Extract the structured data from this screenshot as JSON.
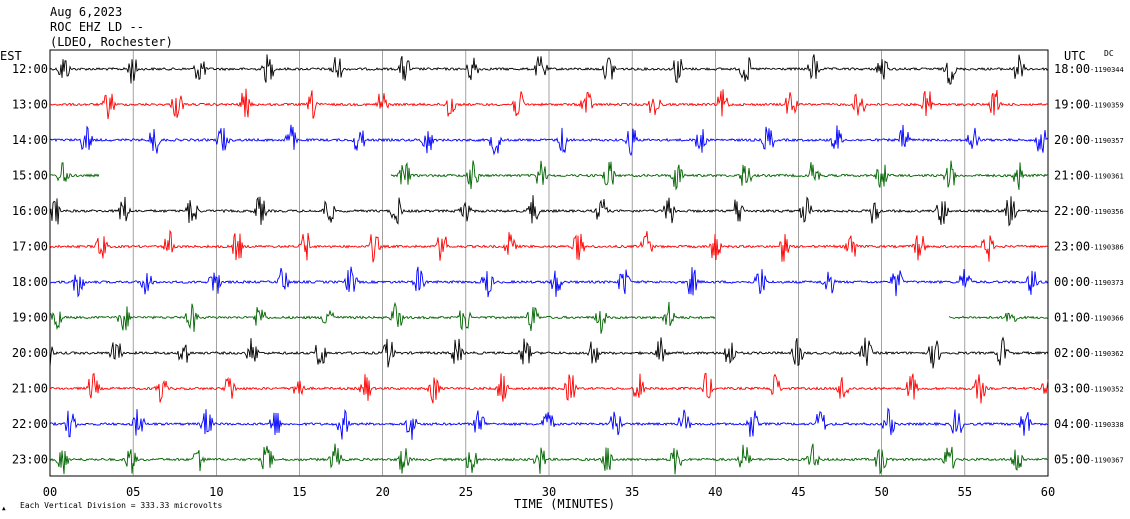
{
  "header": {
    "date": "Aug 6,2023",
    "station": "ROC EHZ LD --",
    "network": "(LDEO, Rochester)",
    "left_zone": "EST",
    "right_zone": "UTC",
    "dc_label": "DC"
  },
  "footer": {
    "xlabel": "TIME (MINUTES)",
    "scale_note": "Each Vertical Division =  333.33 microvolts"
  },
  "chart_data": {
    "type": "line",
    "title": "ROC EHZ LD --",
    "xlabel": "TIME (MINUTES)",
    "xlim": [
      0,
      60
    ],
    "x_ticks": [
      "00",
      "05",
      "10",
      "15",
      "20",
      "25",
      "30",
      "35",
      "40",
      "45",
      "50",
      "55",
      "60"
    ],
    "grid": true,
    "trace_colors": [
      "#000000",
      "#ff0000",
      "#0000ff",
      "#006400"
    ],
    "rows": [
      {
        "est": "12:00",
        "utc": "18:00",
        "dc": "-1190344",
        "color": "#000000"
      },
      {
        "est": "13:00",
        "utc": "19:00",
        "dc": "-1190359",
        "color": "#ff0000"
      },
      {
        "est": "14:00",
        "utc": "20:00",
        "dc": "-1190357",
        "color": "#0000ff"
      },
      {
        "est": "15:00",
        "utc": "21:00",
        "dc": "-1190361",
        "color": "#006400"
      },
      {
        "est": "16:00",
        "utc": "22:00",
        "dc": "-1190356",
        "color": "#000000"
      },
      {
        "est": "17:00",
        "utc": "23:00",
        "dc": "-1190386",
        "color": "#ff0000"
      },
      {
        "est": "18:00",
        "utc": "00:00",
        "dc": "-1190373",
        "color": "#0000ff"
      },
      {
        "est": "19:00",
        "utc": "01:00",
        "dc": "-1190366",
        "color": "#006400"
      },
      {
        "est": "20:00",
        "utc": "02:00",
        "dc": "-1190362",
        "color": "#000000"
      },
      {
        "est": "21:00",
        "utc": "03:00",
        "dc": "-1190352",
        "color": "#ff0000"
      },
      {
        "est": "22:00",
        "utc": "04:00",
        "dc": "-1190338",
        "color": "#0000ff"
      },
      {
        "est": "23:00",
        "utc": "05:00",
        "dc": "-1190367",
        "color": "#006400"
      }
    ],
    "data_gaps": [
      {
        "row": 3,
        "from_min": 3,
        "to_min": 20.5
      },
      {
        "row": 7,
        "from_min": 40,
        "to_min": 54
      }
    ]
  }
}
